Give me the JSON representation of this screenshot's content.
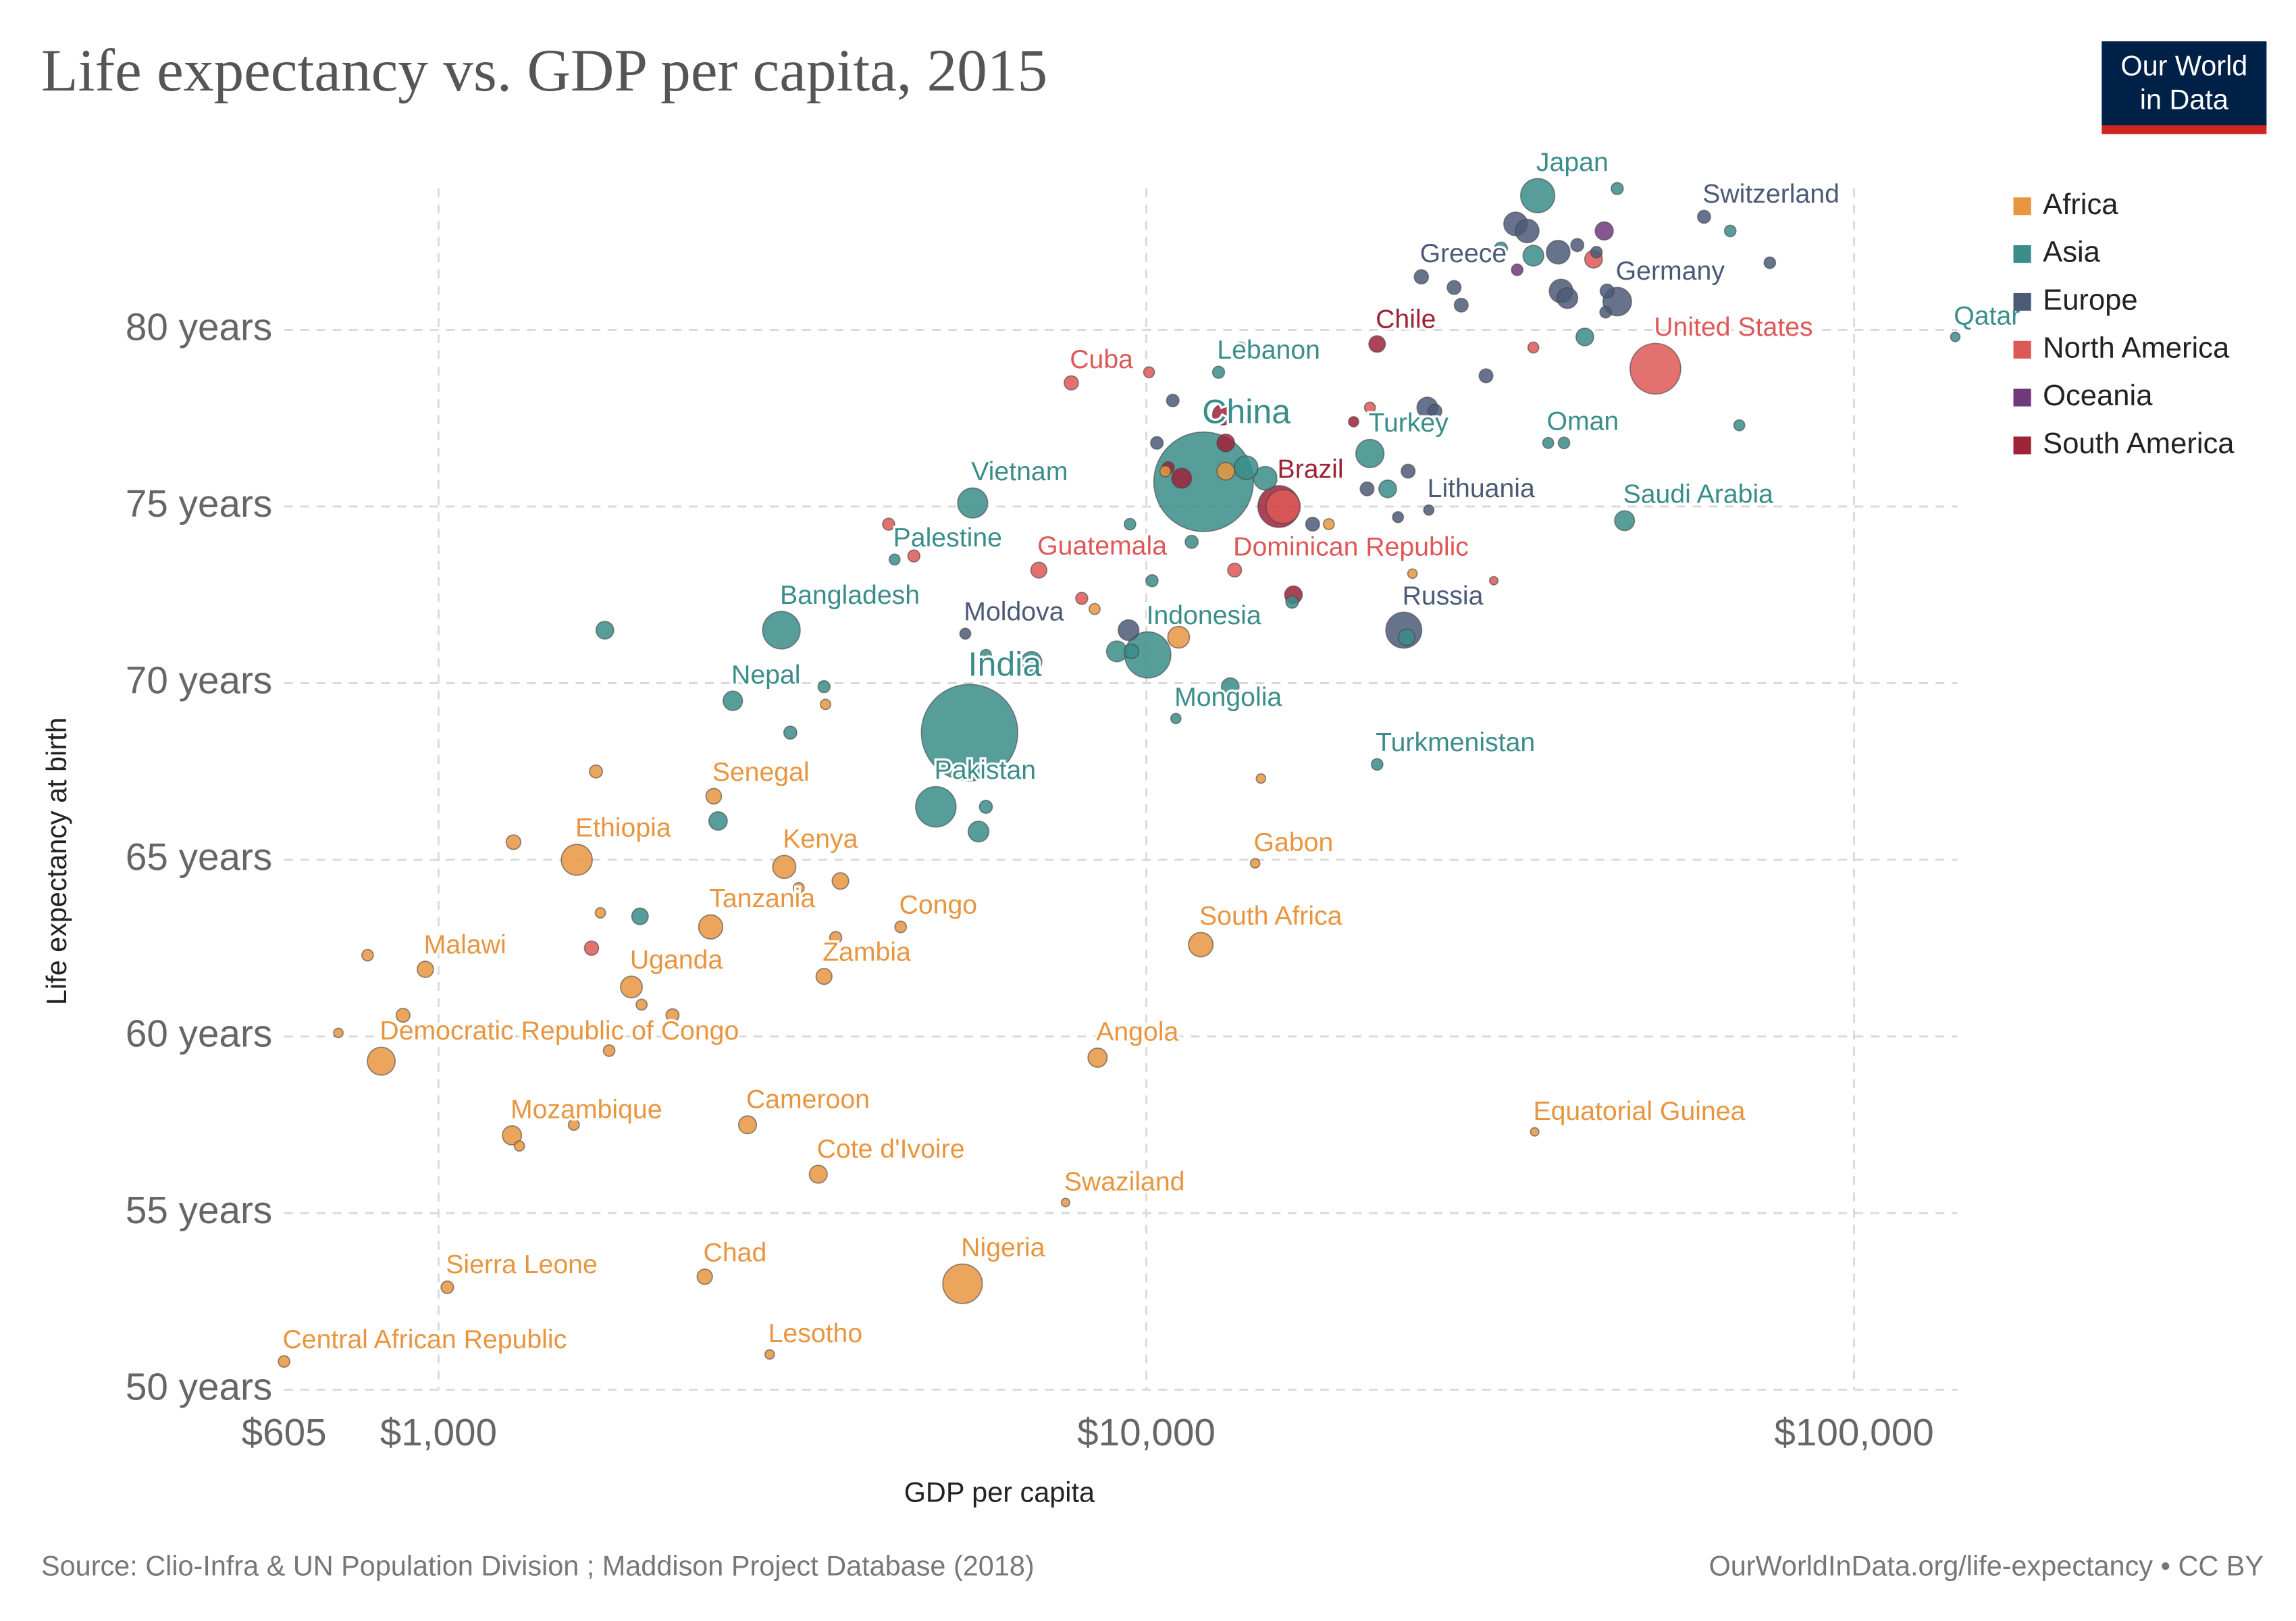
{
  "logo": {
    "line1": "Our World",
    "line2": "in Data"
  },
  "chart_data": {
    "type": "scatter",
    "title": "Life expectancy vs. GDP per capita, 2015",
    "x_label": "GDP per capita",
    "y_label": "Life expectancy at birth",
    "source": "Source: Clio-Infra & UN Population Division ; Maddison Project Database (2018)",
    "credit": "OurWorldInData.org/life-expectancy • CC BY",
    "xscale": "log",
    "grid": true,
    "legend": "right",
    "xlim": [
      605,
      140000
    ],
    "xticks": [
      {
        "value": 605,
        "label": "$605"
      },
      {
        "value": 1000,
        "label": "$1,000"
      },
      {
        "value": 10000,
        "label": "$10,000"
      },
      {
        "value": 100000,
        "label": "$100,000"
      }
    ],
    "ylim": [
      50,
      84
    ],
    "yticks": [
      {
        "value": 50,
        "label": "50 years"
      },
      {
        "value": 55,
        "label": "55 years"
      },
      {
        "value": 60,
        "label": "60 years"
      },
      {
        "value": 65,
        "label": "65 years"
      },
      {
        "value": 70,
        "label": "70 years"
      },
      {
        "value": 75,
        "label": "75 years"
      },
      {
        "value": 80,
        "label": "80 years"
      }
    ],
    "series": [
      {
        "name": "Africa",
        "color": "#e8953f",
        "labels": [
          "Central African Republic",
          "Sierra Leone",
          "Chad",
          "Lesotho",
          "Nigeria",
          "Swaziland",
          "Cote d'Ivoire",
          "Cameroon",
          "Mozambique",
          "Equatorial Guinea",
          "Angola",
          "Democratic Republic of Congo",
          "Malawi",
          "Uganda",
          "Zambia",
          "Congo",
          "South Africa",
          "Tanzania",
          "Kenya",
          "Ethiopia",
          "Gabon",
          "Senegal",
          null,
          null,
          null,
          null,
          null,
          null,
          null,
          null,
          null,
          null,
          null,
          null,
          null,
          null,
          null,
          null,
          null,
          null,
          null,
          null,
          null,
          null
        ],
        "x": [
          605,
          1029,
          2378,
          2937,
          5500,
          7690,
          3440,
          2733,
          1270,
          35380,
          8535,
          830,
          958,
          1873,
          3505,
          4497,
          11940,
          2424,
          3080,
          1568,
          14250,
          2448,
          722,
          891,
          794,
          1276,
          1669,
          1693,
          1936,
          2141,
          1742,
          1553,
          1301,
          3641,
          3697,
          3228,
          3522,
          14520,
          18110,
          23770,
          8453,
          11110,
          10640,
          12950
        ],
        "values": [
          50.8,
          52.9,
          53.2,
          51.0,
          53.0,
          55.3,
          56.1,
          57.5,
          57.2,
          57.3,
          59.4,
          59.3,
          61.9,
          61.4,
          61.7,
          63.1,
          62.6,
          63.1,
          64.8,
          65.0,
          64.9,
          66.8,
          60.1,
          60.6,
          62.3,
          65.5,
          67.5,
          63.5,
          60.9,
          60.6,
          59.6,
          57.5,
          56.9,
          62.8,
          64.4,
          64.2,
          69.4,
          67.3,
          74.5,
          73.1,
          72.1,
          71.3,
          76.0,
          76.0
        ],
        "sizes": [
          5,
          7,
          14,
          2,
          180,
          1,
          23,
          23,
          28,
          1,
          28,
          77,
          17,
          40,
          16,
          5,
          55,
          53,
          47,
          100,
          2,
          15,
          2,
          10,
          5,
          12,
          8,
          3,
          4,
          8,
          5,
          4,
          3,
          6,
          18,
          4,
          3,
          2,
          4,
          2,
          4,
          40,
          4,
          22
        ]
      },
      {
        "name": "Asia",
        "color": "#3a8d8a",
        "labels": [
          "India",
          "China",
          "Pakistan",
          "Bangladesh",
          "Indonesia",
          "Vietnam",
          "Japan",
          "Nepal",
          "Palestine",
          "Lebanon",
          "Turkey",
          "Mongolia",
          "Turkmenistan",
          "Oman",
          "Saudi Arabia",
          "Qatar",
          null,
          null,
          null,
          null,
          null,
          null,
          null,
          null,
          null,
          null,
          null,
          null,
          null,
          null,
          null,
          null,
          null,
          null,
          null,
          null,
          null,
          null,
          null,
          null,
          null,
          null,
          null
        ],
        "x": [
          5627,
          12050,
          5043,
          3051,
          10050,
          5685,
          35730,
          2605,
          4410,
          12650,
          20700,
          11010,
          21190,
          36970,
          47400,
          139000,
          1718,
          3505,
          3141,
          2483,
          1926,
          5794,
          5934,
          6883,
          9530,
          9087,
          10190,
          11590,
          14730,
          16070,
          21930,
          13140,
          41650,
          38920,
          68850,
          66840,
          46280,
          35230,
          31700,
          9484,
          13840,
          5934,
          23330
        ],
        "values": [
          68.6,
          75.7,
          66.5,
          71.5,
          70.8,
          75.1,
          83.8,
          69.5,
          73.5,
          78.8,
          76.5,
          69.0,
          67.7,
          76.8,
          74.6,
          79.8,
          71.5,
          69.9,
          68.6,
          66.1,
          63.4,
          65.8,
          66.5,
          70.6,
          70.9,
          70.9,
          72.9,
          74.0,
          75.8,
          72.3,
          75.5,
          69.9,
          79.8,
          76.8,
          77.3,
          82.8,
          84.0,
          82.1,
          82.3,
          74.5,
          76.1,
          70.8,
          71.3
        ],
        "sizes": [
          1310,
          1400,
          190,
          160,
          258,
          93,
          127,
          29,
          4,
          6,
          79,
          3,
          5,
          4,
          31,
          2,
          22,
          6,
          8,
          25,
          18,
          35,
          8,
          35,
          12,
          35,
          6,
          8,
          50,
          7,
          22,
          22,
          22,
          5,
          4,
          5,
          6,
          35,
          8,
          5,
          50,
          4,
          18
        ]
      },
      {
        "name": "Europe",
        "color": "#4c5a78",
        "labels": [
          "Switzerland",
          "Greece",
          "Germany",
          "Lithuania",
          "Russia",
          "Moldova",
          null,
          null,
          null,
          null,
          null,
          null,
          null,
          null,
          null,
          null,
          null,
          null,
          null,
          null,
          null,
          null,
          null,
          null,
          null,
          null,
          null,
          null
        ],
        "x": [
          61380,
          24470,
          46280,
          25070,
          23110,
          5550,
          33250,
          34530,
          38190,
          38550,
          40640,
          44770,
          76030,
          27220,
          27860,
          30200,
          24950,
          25570,
          23440,
          20510,
          17180,
          22680,
          10900,
          10350,
          44560,
          9440,
          39350,
          43250
        ],
        "values": [
          83.2,
          81.5,
          80.8,
          74.9,
          71.5,
          71.4,
          83.0,
          82.8,
          82.2,
          81.1,
          82.4,
          81.1,
          81.9,
          81.2,
          80.7,
          78.7,
          77.8,
          77.7,
          76.0,
          75.5,
          74.5,
          74.7,
          78.0,
          76.8,
          80.5,
          71.5,
          80.9,
          82.2
        ],
        "sizes": [
          8,
          11,
          82,
          3,
          144,
          4,
          50,
          50,
          50,
          50,
          8,
          10,
          5,
          10,
          10,
          10,
          35,
          10,
          10,
          10,
          10,
          4,
          7,
          7,
          5,
          35,
          35,
          5
        ]
      },
      {
        "name": "North America",
        "color": "#dd5857",
        "labels": [
          "United States",
          "Cuba",
          "Guatemala",
          "Dominican Republic",
          null,
          null,
          null,
          null,
          null,
          null,
          null,
          null,
          null,
          null,
          null
        ],
        "x": [
          52400,
          7835,
          7050,
          13330,
          4325,
          4695,
          8106,
          10090,
          13590,
          35230,
          30970,
          1645,
          20700,
          42850,
          15610
        ],
        "values": [
          78.9,
          78.5,
          73.2,
          73.2,
          74.5,
          73.6,
          72.4,
          78.8,
          79.5,
          79.5,
          72.9,
          62.5,
          77.8,
          82.0,
          75.0
        ],
        "sizes": [
          321,
          11,
          16,
          10,
          6,
          6,
          6,
          4,
          4,
          4,
          1,
          11,
          4,
          22,
          127
        ]
      },
      {
        "name": "Oceania",
        "color": "#6e3a7c",
        "labels": [
          null,
          null
        ],
        "x": [
          44360,
          33420
        ],
        "values": [
          82.8,
          81.7
        ],
        "sizes": [
          24,
          5
        ]
      },
      {
        "name": "South America",
        "color": "#9e2238",
        "labels": [
          "Chile",
          "Brazil",
          null,
          null,
          null,
          null,
          null,
          null
        ],
        "x": [
          21190,
          15390,
          12830,
          11220,
          10740,
          16140,
          19630,
          12950
        ],
        "values": [
          79.6,
          75.0,
          77.6,
          75.8,
          76.1,
          72.5,
          77.4,
          76.8
        ],
        "sizes": [
          18,
          205,
          35,
          31,
          6,
          22,
          3,
          22
        ]
      }
    ]
  }
}
